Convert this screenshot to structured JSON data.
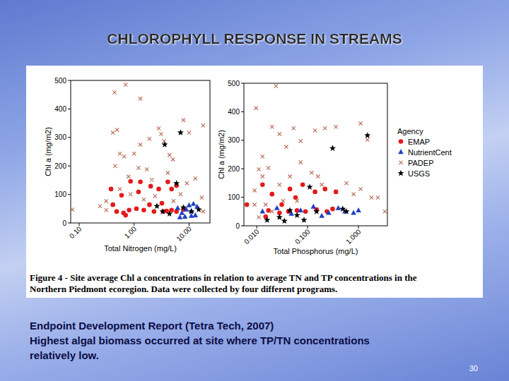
{
  "slide": {
    "title": "CHLOROPHYLL RESPONSE IN STREAMS",
    "caption": [
      "Figure 4 - Site average Chl a concentrations in relation to average TN and TP concentrations in the",
      "Northern Piedmont ecoregion. Data were collected by four different programs."
    ],
    "notes": [
      "Endpoint Development Report (Tetra Tech, 2007)",
      "Highest algal biomass occurred at site where TP/TN concentrations",
      "relatively low."
    ],
    "page_number": 30
  },
  "chart_data": [
    {
      "type": "scatter",
      "x_label": "Total Nitrogen (mg/L)",
      "y_label": "Chl a (mg/m2)",
      "log": "x",
      "grid": false,
      "xlim": [
        0.07,
        24
      ],
      "xticks": [
        {
          "value": 0.1,
          "label": "0.10"
        },
        {
          "value": 1,
          "label": "1.00"
        },
        {
          "value": 10,
          "label": "10.00"
        }
      ],
      "ylim": [
        0,
        500
      ],
      "yticks": [
        0,
        100,
        200,
        300,
        400,
        500
      ],
      "series": [
        {
          "name": "EMAP",
          "color": "#e31a1c",
          "marker": "circle",
          "x": [
            0.38,
            0.59,
            0.86,
            1.3,
            2.0,
            2.8,
            4.1,
            4.8,
            5.9,
            0.41,
            0.48,
            0.64,
            0.81,
            1.1,
            1.5,
            1.9,
            2.3,
            3.2,
            3.9,
            4.8,
            5.9,
            7.9,
            1.2,
            3.4,
            0.7
          ],
          "values": [
            119,
            97,
            146,
            144,
            129,
            119,
            144,
            119,
            131,
            64,
            40,
            35,
            45,
            50,
            45,
            64,
            40,
            69,
            42,
            45,
            40,
            47,
            109,
            40,
            27
          ]
        },
        {
          "name": "NutrientCent",
          "color": "#2040c0",
          "marker": "triangle",
          "x": [
            6.2,
            7.4,
            8.9,
            10,
            11,
            13,
            8.4,
            14,
            6.8,
            11,
            12
          ],
          "values": [
            52,
            35,
            47,
            62,
            42,
            27,
            22,
            57,
            20,
            25,
            67
          ]
        },
        {
          "name": "PADEP",
          "color": "#b86a55",
          "marker": "x",
          "x": [
            0.44,
            0.7,
            0.41,
            0.55,
            0.66,
            0.49,
            1.0,
            1.3,
            1.9,
            2.8,
            3.1,
            3.5,
            4.4,
            7.9,
            10,
            18,
            1.7,
            2.1,
            0.79,
            0.31,
            0.31,
            0.24,
            0.075,
            0.86,
            1.5,
            2.4,
            5.2,
            7.0,
            9.1,
            13,
            17,
            18,
            1.2,
            4.1,
            1.3,
            5.1,
            0.45,
            0.55
          ],
          "values": [
            458,
            485,
            317,
            243,
            233,
            327,
            243,
            436,
            295,
            332,
            312,
            287,
            238,
            361,
            317,
            342,
            188,
            151,
            163,
            45,
            77,
            59,
            47,
            101,
            82,
            94,
            77,
            101,
            139,
            156,
            89,
            40,
            193,
            176,
            275,
            223,
            200,
            119
          ]
        },
        {
          "name": "USGS",
          "color": "#000000",
          "marker": "star",
          "x": [
            7.0,
            3.6,
            5.9,
            2.6,
            3.3,
            4.4,
            7.9,
            15,
            11
          ],
          "values": [
            317,
            275,
            139,
            59,
            40,
            32,
            54,
            47,
            40
          ]
        }
      ]
    },
    {
      "type": "scatter",
      "x_label": "Total Phosphorus (mg/L)",
      "y_label": "Chl a (mg/m2)",
      "log": "x",
      "grid": false,
      "legend": "right",
      "legend_title": "Agency",
      "xlim": [
        0.0056,
        3.7
      ],
      "xticks": [
        {
          "value": 0.01,
          "label": "0.010"
        },
        {
          "value": 0.1,
          "label": "0.100"
        },
        {
          "value": 1,
          "label": "1.000"
        }
      ],
      "ylim": [
        0,
        500
      ],
      "yticks": [
        0,
        100,
        200,
        300,
        400,
        500
      ],
      "series": [
        {
          "name": "EMAP",
          "color": "#e31a1c",
          "marker": "circle",
          "x": [
            0.0064,
            0.013,
            0.02,
            0.031,
            0.045,
            0.058,
            0.08,
            0.14,
            0.22,
            0.36,
            0.017,
            0.028,
            0.042,
            0.062,
            0.091,
            0.15,
            0.24,
            0.31,
            0.015
          ],
          "values": [
            74,
            144,
            111,
            74,
            129,
            99,
            144,
            119,
            129,
            119,
            54,
            45,
            50,
            54,
            50,
            57,
            50,
            59,
            32
          ]
        },
        {
          "name": "NutrientCent",
          "color": "#2040c0",
          "marker": "triangle",
          "x": [
            0.013,
            0.025,
            0.048,
            0.073,
            0.13,
            0.19,
            0.4,
            0.54,
            0.8,
            1.0,
            0.26
          ],
          "values": [
            50,
            62,
            42,
            54,
            67,
            35,
            62,
            50,
            45,
            54,
            45
          ]
        },
        {
          "name": "PADEP",
          "color": "#b86a55",
          "marker": "x",
          "x": [
            0.0097,
            0.024,
            0.02,
            0.028,
            0.038,
            0.053,
            0.073,
            0.14,
            0.22,
            0.36,
            1.1,
            1.5,
            0.013,
            0.017,
            0.013,
            0.045,
            0.073,
            0.12,
            0.19,
            0.58,
            0.8,
            1.1,
            1.8,
            0.0091,
            0.011,
            0.015,
            0.02,
            0.033,
            0.0091,
            0.028,
            0.062,
            3.3,
            2.4,
            0.16,
            0.011
          ],
          "values": [
            413,
            490,
            347,
            322,
            277,
            342,
            297,
            334,
            342,
            347,
            359,
            302,
            243,
            203,
            173,
            173,
            223,
            186,
            144,
            149,
            111,
            129,
            99,
            74,
            30,
            74,
            50,
            87,
            124,
            144,
            87,
            50,
            99,
            173,
            198
          ]
        },
        {
          "name": "USGS",
          "color": "#000000",
          "marker": "star",
          "x": [
            1.5,
            0.31,
            0.11,
            0.045,
            0.028,
            0.016,
            0.062,
            0.085,
            0.15,
            0.035,
            0.49,
            0.58
          ],
          "values": [
            317,
            272,
            136,
            54,
            30,
            20,
            37,
            20,
            50,
            17,
            59,
            50
          ]
        }
      ]
    }
  ]
}
